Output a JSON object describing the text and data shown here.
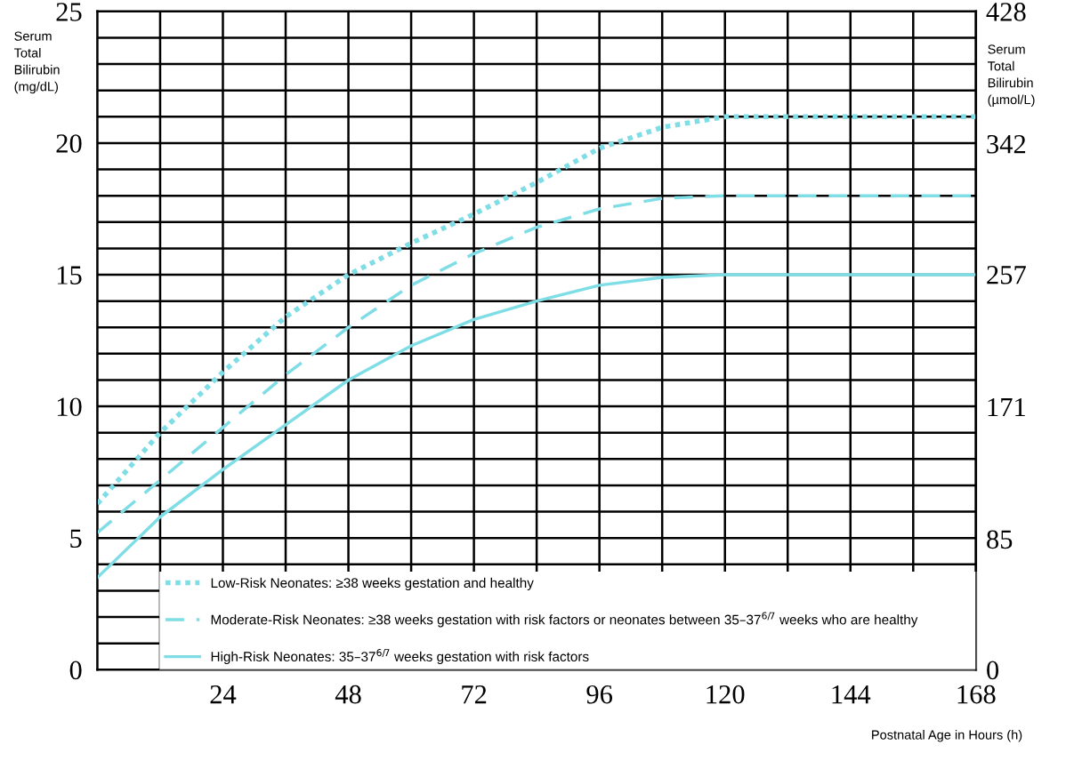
{
  "chart_data": {
    "type": "line",
    "xlabel": "Postnatal Age in Hours (h)",
    "ylabel": "Serum\nTotal\nBilirubin\n(mg/dL)",
    "y2label": "Serum\nTotal\nBilirubin\n(µmol/L)",
    "xlim": [
      0,
      168
    ],
    "xticks": [
      {
        "value": 12,
        "label": null
      },
      24,
      {
        "value": 36,
        "label": null
      },
      48,
      {
        "value": 60,
        "label": null
      },
      72,
      {
        "value": 84,
        "label": null
      },
      96,
      {
        "value": 108,
        "label": null
      },
      120,
      {
        "value": 132,
        "label": null
      },
      144,
      {
        "value": 156,
        "label": null
      },
      168
    ],
    "ylim": [
      0,
      25
    ],
    "yticks": [
      0,
      {
        "value": 1,
        "label": null
      },
      {
        "value": 2,
        "label": null
      },
      {
        "value": 3,
        "label": null
      },
      {
        "value": 4,
        "label": null
      },
      5,
      {
        "value": 6,
        "label": null
      },
      {
        "value": 7,
        "label": null
      },
      {
        "value": 8,
        "label": null
      },
      {
        "value": 9,
        "label": null
      },
      10,
      {
        "value": 11,
        "label": null
      },
      {
        "value": 12,
        "label": null
      },
      {
        "value": 13,
        "label": null
      },
      {
        "value": 14,
        "label": null
      },
      15,
      {
        "value": 16,
        "label": null
      },
      {
        "value": 17,
        "label": null
      },
      {
        "value": 18,
        "label": null
      },
      {
        "value": 19,
        "label": null
      },
      20,
      {
        "value": 21,
        "label": null
      },
      {
        "value": 22,
        "label": null
      },
      {
        "value": 23,
        "label": null
      },
      {
        "value": 24,
        "label": null
      },
      25
    ],
    "y2lim": [
      0,
      428
    ],
    "y2ticks": [
      0,
      85,
      171,
      257,
      342,
      428
    ],
    "grid": true,
    "legend": "bottom",
    "marker": "none",
    "x": [
      0,
      12,
      24,
      36,
      48,
      60,
      72,
      84,
      96,
      108,
      120,
      132,
      144,
      156,
      168
    ],
    "series": [
      {
        "name": "Low-Risk Neonates: ≥38 weeks gestation and healthy",
        "color": "#7fdde6",
        "line_style": "dotted",
        "values": [
          6.3,
          9.0,
          11.3,
          13.4,
          15.0,
          16.2,
          17.3,
          18.5,
          19.8,
          20.6,
          21,
          21,
          21,
          21,
          21
        ]
      },
      {
        "name": "Moderate-Risk Neonates: ≥38 weeks gestation with risk factors or neonates between 35–37$^{6/7}$ weeks who are healthy",
        "color": "#7fdde6",
        "line_style": "dashed",
        "values": [
          5.2,
          7.2,
          9.2,
          11.2,
          13.0,
          14.6,
          15.8,
          16.8,
          17.5,
          17.9,
          18,
          18,
          18,
          18,
          18
        ]
      },
      {
        "name": "High-Risk Neonates: 35–37$^{6/7}$ weeks gestation with risk factors",
        "color": "#7fdde6",
        "line_style": "solid",
        "values": [
          3.5,
          5.8,
          7.6,
          9.3,
          11.0,
          12.3,
          13.3,
          14.0,
          14.6,
          14.9,
          15,
          15,
          15,
          15,
          15
        ]
      }
    ]
  }
}
